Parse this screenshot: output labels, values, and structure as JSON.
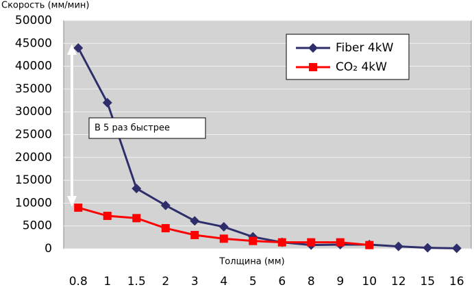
{
  "chart_data": {
    "type": "line",
    "title": "Скорость (мм/мин)",
    "x_label": "Толщина (мм)",
    "annotation": "В 5 раз быстрее",
    "categories": [
      "0.8",
      "1",
      "1.5",
      "2",
      "3",
      "4",
      "5",
      "6",
      "8",
      "9",
      "10",
      "12",
      "15",
      "16"
    ],
    "series": [
      {
        "name": "Fiber 4kW",
        "color": "#2e2e6b",
        "marker": "diamond",
        "values": [
          44000,
          32000,
          13200,
          9500,
          6100,
          4800,
          2600,
          1400,
          800,
          900,
          900,
          500,
          200,
          100
        ]
      },
      {
        "name": "CO₂ 4kW",
        "color": "#ff0000",
        "marker": "square",
        "values": [
          9000,
          7200,
          6700,
          4500,
          3000,
          2200,
          1700,
          1400,
          1400,
          1400,
          800,
          null,
          null,
          null
        ]
      }
    ],
    "ylim": [
      0,
      50000
    ],
    "yticks": [
      0,
      5000,
      10000,
      15000,
      20000,
      25000,
      30000,
      35000,
      40000,
      45000,
      50000
    ],
    "grid": true,
    "legend": "upper right"
  }
}
